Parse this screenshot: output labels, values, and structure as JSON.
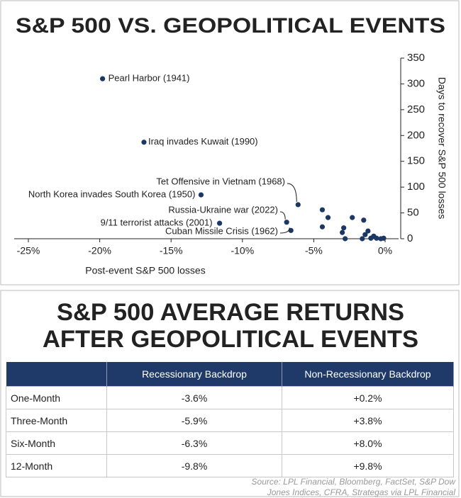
{
  "chart_data": {
    "type": "scatter",
    "title": "S&P 500 VS. GEOPOLITICAL EVENTS",
    "x_label": "Post-event S&P 500 losses",
    "y_label": "Days to recover S&P 500 losses",
    "color": "#1b3764",
    "x": [
      -19.8,
      -16.9,
      -6.1,
      -12.9,
      -6.9,
      -11.6,
      -6.6,
      -4.4,
      -4.0,
      -4.4,
      -2.3,
      -1.5,
      -2.9,
      -3.0,
      -2.8,
      -1.2,
      -1.4,
      -1.6,
      -0.8,
      -0.6,
      -0.1,
      -0.3,
      -1.0
    ],
    "values": [
      310,
      187,
      66,
      85,
      32,
      30,
      16,
      56,
      41,
      23,
      41,
      36,
      21,
      12,
      0,
      15,
      8,
      0,
      5,
      1,
      1,
      0,
      1
    ],
    "labels": [
      "Pearl Harbor (1941)",
      "Iraq invades Kuwait (1990)",
      "Tet Offensive in Vietnam (1968)",
      "North Korea invades South Korea (1950)",
      "Russia-Ukraine war (2022)",
      "9/11 terrorist attacks (2001)",
      "Cuban Missile Crisis (1962)",
      null,
      null,
      null,
      null,
      null,
      null,
      null,
      null,
      null,
      null,
      null,
      null,
      null,
      null,
      null,
      null
    ],
    "xlim": [
      -25,
      0
    ],
    "xticks": [
      {
        "value": -25,
        "label": "-25%"
      },
      {
        "value": -20,
        "label": "-20%"
      },
      {
        "value": -15,
        "label": "-15%"
      },
      {
        "value": -10,
        "label": "-10%"
      },
      {
        "value": -5,
        "label": "-5%"
      },
      {
        "value": 0,
        "label": "0%"
      }
    ],
    "ylim": [
      0,
      350
    ],
    "yticks": [
      0,
      50,
      100,
      150,
      200,
      250,
      300,
      350
    ]
  },
  "table": {
    "title_lines": [
      "S&P 500 AVERAGE RETURNS",
      "AFTER GEOPOLITICAL EVENTS"
    ],
    "header": [
      "",
      "Recessionary Backdrop",
      "Non-Recessionary Backdrop"
    ],
    "rows": [
      [
        "One-Month",
        "-3.6%",
        "+0.2%"
      ],
      [
        "Three-Month",
        "-5.9%",
        "+3.8%"
      ],
      [
        "Six-Month",
        "-6.3%",
        "+8.0%"
      ],
      [
        "12-Month",
        "-9.8%",
        "+9.8%"
      ]
    ]
  },
  "source_lines": [
    "Source: LPL Financial, Bloomberg, FactSet, S&P Dow",
    "Jones Indices, CFRA, Strategas via LPL Financial"
  ]
}
